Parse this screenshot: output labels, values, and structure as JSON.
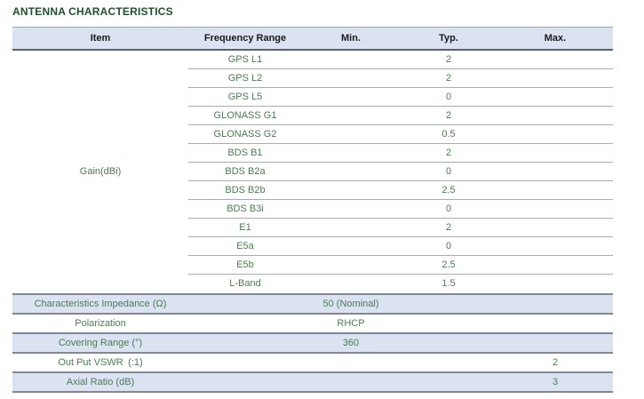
{
  "title": "ANTENNA CHARACTERISTICS",
  "colors": {
    "title_green": "#1f5128",
    "cell_green": "#4e7b54",
    "header_bg": "#dbe2f1",
    "shaded_row_bg": "#dbe2f1",
    "header_text": "#1a1a1a"
  },
  "table": {
    "columns": {
      "item": "Item",
      "frequency_range": "Frequency Range",
      "min": "Min.",
      "typ": "Typ.",
      "max": "Max."
    },
    "gain": {
      "item_label": "Gain(dBi)",
      "rows": [
        {
          "band": "GPS L1",
          "typ": "2"
        },
        {
          "band": "GPS L2",
          "typ": "2"
        },
        {
          "band": "GPS L5",
          "typ": "0"
        },
        {
          "band": "GLONASS G1",
          "typ": "2"
        },
        {
          "band": "GLONASS G2",
          "typ": "0.5"
        },
        {
          "band": "BDS B1",
          "typ": "2"
        },
        {
          "band": "BDS B2a",
          "typ": "0"
        },
        {
          "band": "BDS B2b",
          "typ": "2.5"
        },
        {
          "band": "BDS B3i",
          "typ": "0"
        },
        {
          "band": "E1",
          "typ": "2"
        },
        {
          "band": "E5a",
          "typ": "0"
        },
        {
          "band": "E5b",
          "typ": "2.5"
        },
        {
          "band": "L-Band",
          "typ": "1.5"
        }
      ]
    },
    "extra_rows": [
      {
        "label": "Characteristics Impedance (Ω)",
        "value": "50 (Nominal)",
        "value_column": "min"
      },
      {
        "label": "Polarization",
        "value": "RHCP",
        "value_column": "min"
      },
      {
        "label": "Covering Range (°)",
        "value": "360",
        "value_column": "min"
      },
      {
        "label": "Out Put VSWR (:1)",
        "value": "2",
        "value_column": "max"
      },
      {
        "label": "Axial Ratio (dB)",
        "value": "3",
        "value_column": "max"
      }
    ]
  }
}
